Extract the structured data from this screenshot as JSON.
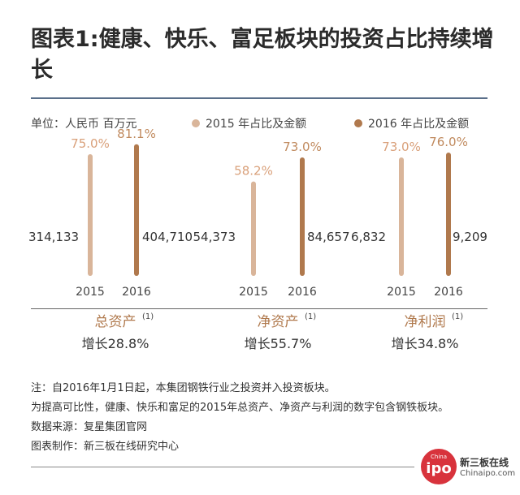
{
  "title": "图表1:健康、快乐、富足板块的投资占比持续增长",
  "unit_label": "单位：人民币 百万元",
  "chart_data": {
    "type": "bar",
    "title": "图表1:健康、快乐、富足板块的投资占比持续增长",
    "unit": "单位：人民币 百万元",
    "legend": [
      {
        "name": "2015 年占比及金额",
        "color": "#d9b59a"
      },
      {
        "name": "2016 年占比及金额",
        "color": "#b0794d"
      }
    ],
    "groups": [
      {
        "name": "总资产",
        "footnote": "(1)",
        "growth": "增长28.8%",
        "years": [
          "2015",
          "2016"
        ],
        "amounts": [
          "314,133",
          "404,710"
        ],
        "percents": [
          75.0,
          81.1
        ],
        "percent_labels": [
          "75.0%",
          "81.1%"
        ]
      },
      {
        "name": "净资产",
        "footnote": "(1)",
        "growth": "增长55.7%",
        "years": [
          "2015",
          "2016"
        ],
        "amounts": [
          "54,373",
          "84,657"
        ],
        "percents": [
          58.2,
          73.0
        ],
        "percent_labels": [
          "58.2%",
          "73.0%"
        ]
      },
      {
        "name": "净利润",
        "footnote": "(1)",
        "growth": "增长34.8%",
        "years": [
          "2015",
          "2016"
        ],
        "amounts": [
          "6,832",
          "9,209"
        ],
        "percents": [
          73.0,
          76.0
        ],
        "percent_labels": [
          "73.0%",
          "76.0%"
        ]
      }
    ],
    "colors": {
      "y2015": "#d9b59a",
      "y2016": "#b0794d",
      "group_title": "#b0794d",
      "label_2015": "#d9a07a",
      "label_2016": "#c08a5e"
    }
  },
  "notes": [
    "注：自2016年1月1日起，本集团钢铁行业之投资并入投资板块。",
    "为提高可比性，健康、快乐和富足的2015年总资产、净资产与利润的数字包含钢铁板块。",
    "数据来源：复星集团官网",
    "图表制作：新三板在线研究中心"
  ],
  "logo": {
    "small_text": "China",
    "big_text": "ipo",
    "name_cn": "新三板在线",
    "name_en": "Chinaipo.com"
  }
}
